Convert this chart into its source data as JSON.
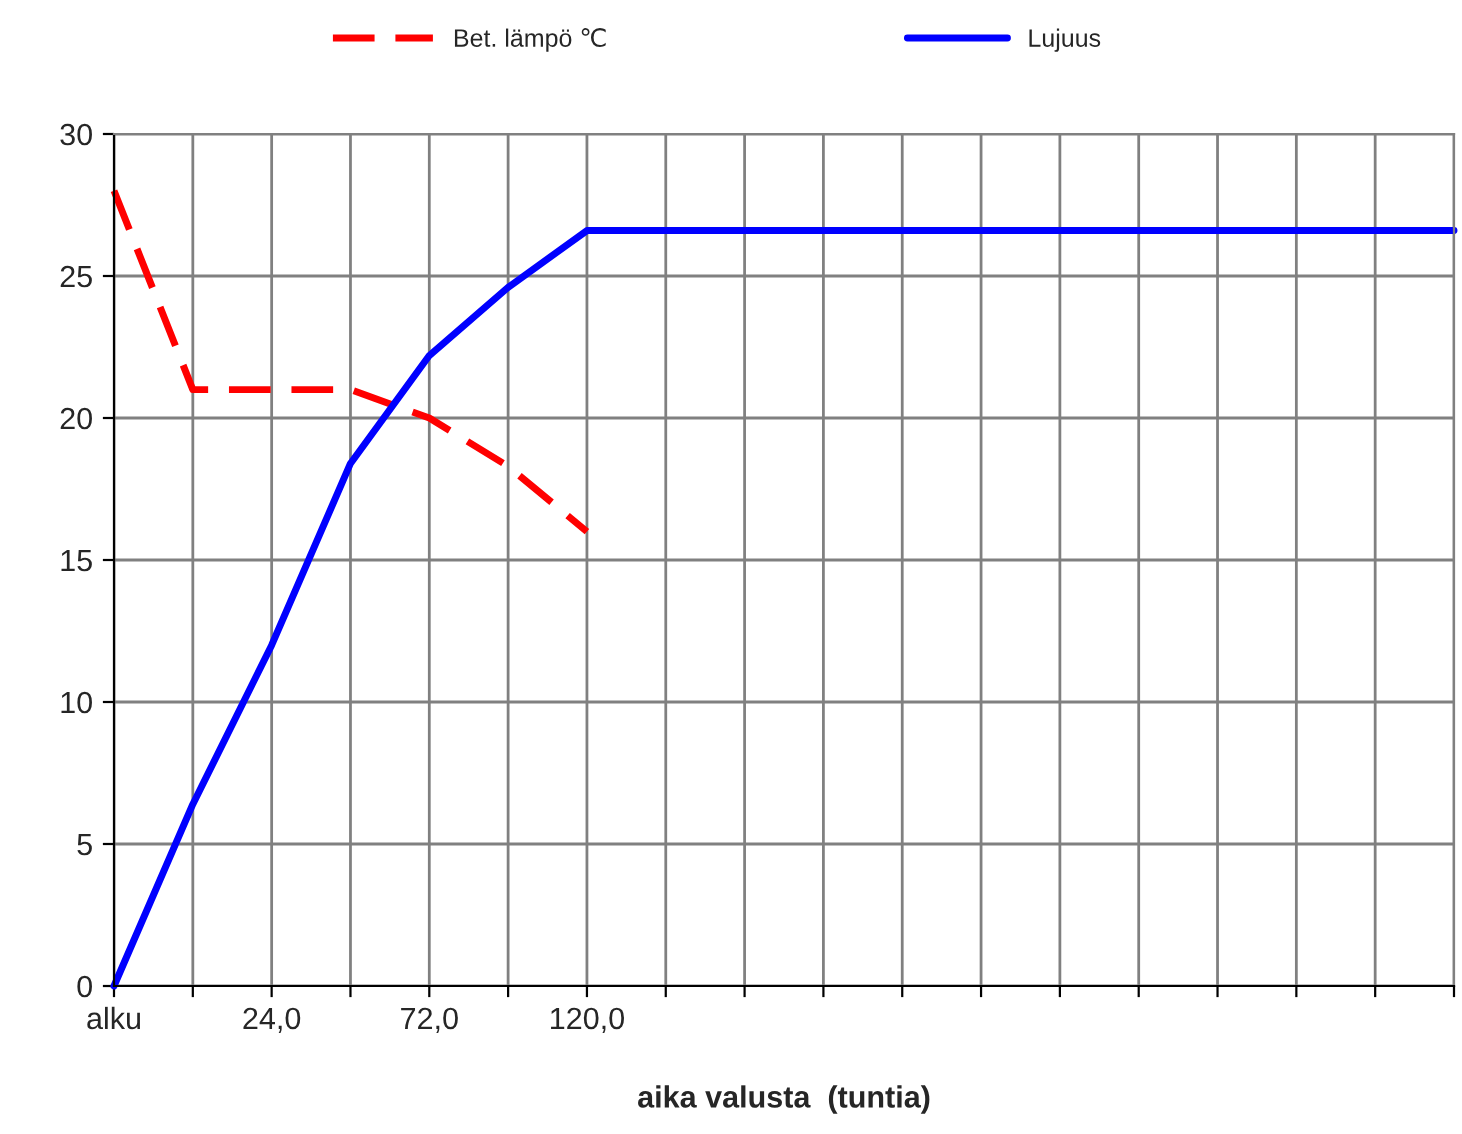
{
  "chart_data": {
    "type": "line",
    "xlabel": "aika valusta  (tuntia)",
    "categories": [
      "alku",
      null,
      "24,0",
      null,
      "72,0",
      null,
      "120,0",
      null,
      null,
      null,
      null,
      null,
      null,
      null,
      null,
      null,
      null,
      null
    ],
    "series": [
      {
        "name": "Bet. lämpö ℃",
        "color": "#ff0000",
        "line_style": "dashed",
        "values": [
          28,
          21,
          21,
          21,
          20,
          18.3,
          16,
          null,
          null,
          null,
          null,
          null,
          null,
          null,
          null,
          null,
          null,
          null
        ]
      },
      {
        "name": "Lujuus",
        "color": "#0000ff",
        "line_style": "solid",
        "values": [
          0,
          6.4,
          12.0,
          18.4,
          22.2,
          24.6,
          26.6,
          26.6,
          26.6,
          26.6,
          26.6,
          26.6,
          26.6,
          26.6,
          26.6,
          26.6,
          26.6,
          26.6
        ]
      }
    ],
    "ylim": [
      0,
      30
    ],
    "yticks": [
      0,
      5,
      10,
      15,
      20,
      25,
      30
    ],
    "grid": true,
    "legend": "top",
    "marker": "none"
  }
}
